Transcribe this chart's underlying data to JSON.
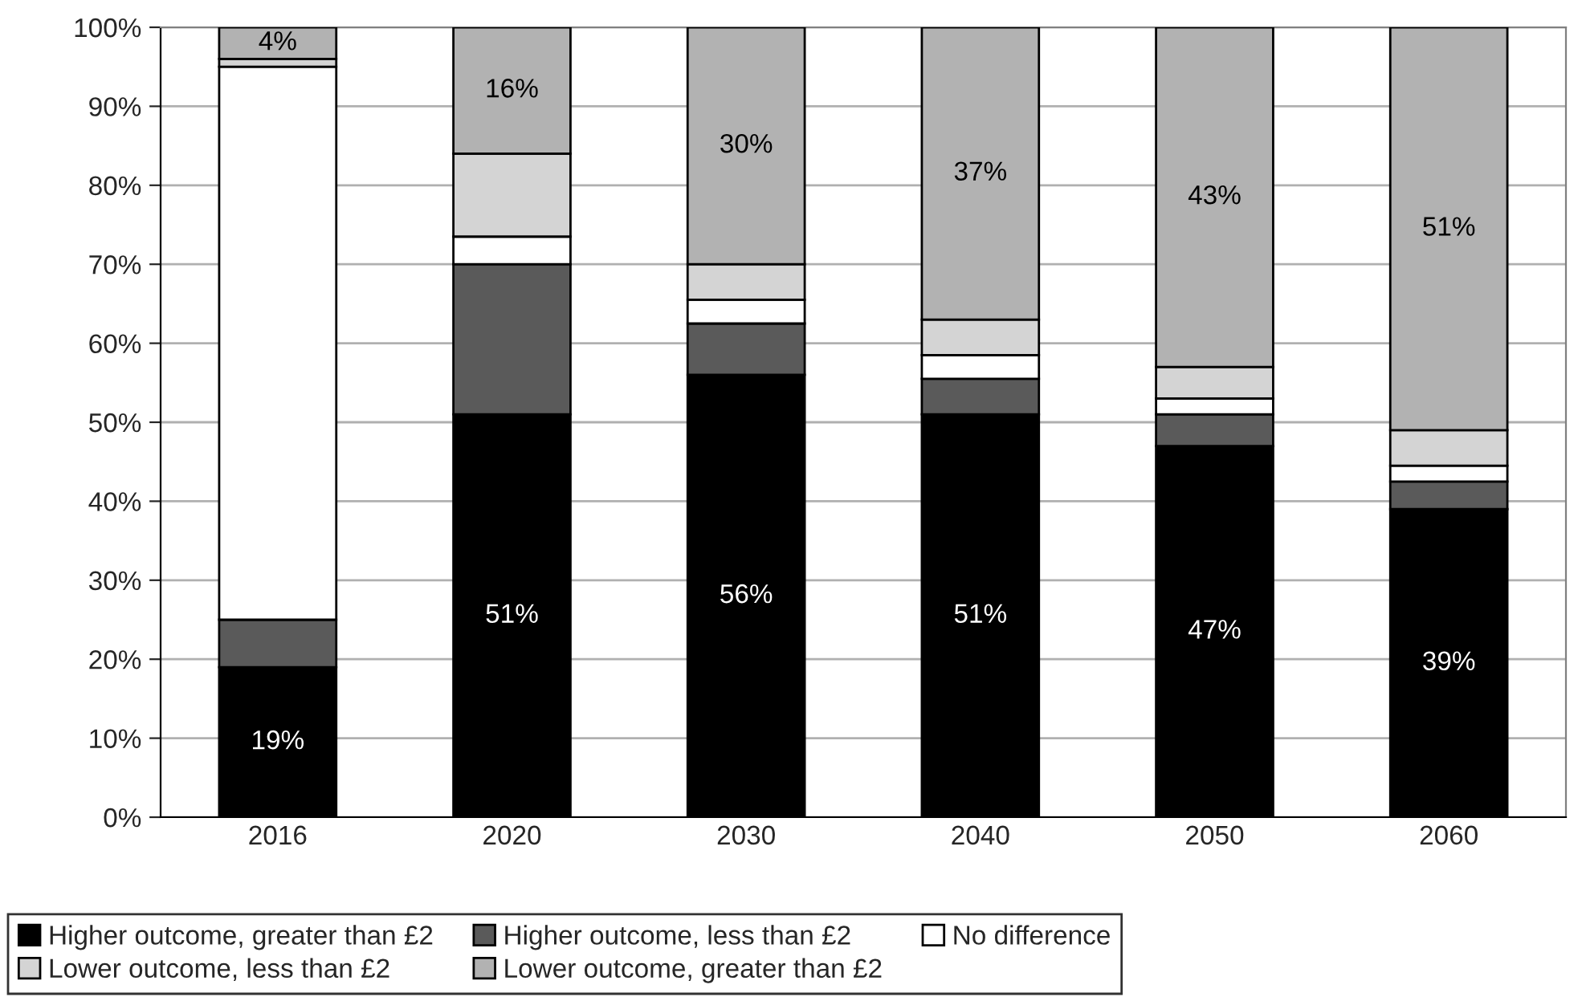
{
  "chart_data": {
    "type": "bar",
    "stacked": true,
    "categories": [
      "2016",
      "2020",
      "2030",
      "2040",
      "2050",
      "2060"
    ],
    "series": [
      {
        "name": "Higher outcome, greater than £2",
        "color": "#000000",
        "values": [
          19,
          51,
          56,
          51,
          47,
          39
        ],
        "value_labels": [
          "19%",
          "51%",
          "56%",
          "51%",
          "47%",
          "39%"
        ]
      },
      {
        "name": "Higher outcome, less than £2",
        "color": "#5a5a5a",
        "values": [
          6,
          19,
          6.5,
          4.5,
          4,
          3.5
        ]
      },
      {
        "name": "No difference",
        "color": "#ffffff",
        "values": [
          70,
          3.5,
          3,
          3,
          2,
          2
        ]
      },
      {
        "name": "Lower outcome, less than £2",
        "color": "#d4d4d4",
        "values": [
          1,
          10.5,
          4.5,
          4.5,
          4,
          4.5
        ]
      },
      {
        "name": "Lower outcome, greater than £2",
        "color": "#b2b2b2",
        "values": [
          4,
          16,
          30,
          37,
          43,
          51
        ],
        "value_labels": [
          "4%",
          "16%",
          "30%",
          "37%",
          "43%",
          "51%"
        ]
      }
    ],
    "ylim": [
      0,
      100
    ],
    "yticks": [
      {
        "value": 0,
        "label": "0%"
      },
      {
        "value": 10,
        "label": "10%"
      },
      {
        "value": 20,
        "label": "20%"
      },
      {
        "value": 30,
        "label": "30%"
      },
      {
        "value": 40,
        "label": "40%"
      },
      {
        "value": 50,
        "label": "50%"
      },
      {
        "value": 60,
        "label": "60%"
      },
      {
        "value": 70,
        "label": "70%"
      },
      {
        "value": 80,
        "label": "80%"
      },
      {
        "value": 90,
        "label": "90%"
      },
      {
        "value": 100,
        "label": "100%"
      }
    ],
    "grid": "y",
    "legend": "bottom"
  }
}
